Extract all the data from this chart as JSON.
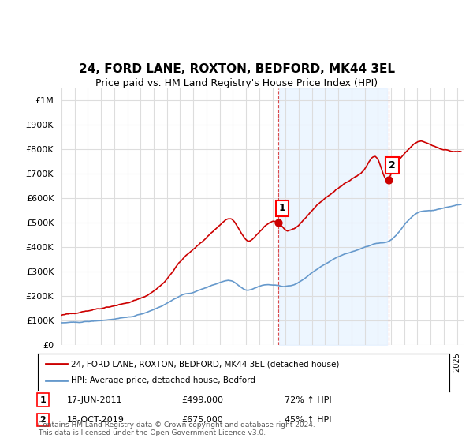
{
  "title": "24, FORD LANE, ROXTON, BEDFORD, MK44 3EL",
  "subtitle": "Price paid vs. HM Land Registry's House Price Index (HPI)",
  "ylabel_ticks": [
    "£0",
    "£100K",
    "£200K",
    "£300K",
    "£400K",
    "£500K",
    "£600K",
    "£700K",
    "£800K",
    "£900K",
    "£1M"
  ],
  "ytick_values": [
    0,
    100000,
    200000,
    300000,
    400000,
    500000,
    600000,
    700000,
    800000,
    900000,
    1000000
  ],
  "ylim": [
    0,
    1050000
  ],
  "xlim_start": 1995.0,
  "xlim_end": 2025.5,
  "red_line_color": "#cc0000",
  "blue_line_color": "#6699cc",
  "point1_x": 2011.46,
  "point1_y": 499000,
  "point2_x": 2019.79,
  "point2_y": 675000,
  "sale1_label": "1",
  "sale2_label": "2",
  "sale1_date": "17-JUN-2011",
  "sale1_price": "£499,000",
  "sale1_hpi": "72% ↑ HPI",
  "sale2_date": "18-OCT-2019",
  "sale2_price": "£675,000",
  "sale2_hpi": "45% ↑ HPI",
  "legend_red": "24, FORD LANE, ROXTON, BEDFORD, MK44 3EL (detached house)",
  "legend_blue": "HPI: Average price, detached house, Bedford",
  "footer": "Contains HM Land Registry data © Crown copyright and database right 2024.\nThis data is licensed under the Open Government Licence v3.0.",
  "background_color": "#ffffff",
  "grid_color": "#dddddd",
  "shaded_region_color": "#ddeeff",
  "shaded_x_start": 2011.46,
  "shaded_x_end": 2019.79
}
